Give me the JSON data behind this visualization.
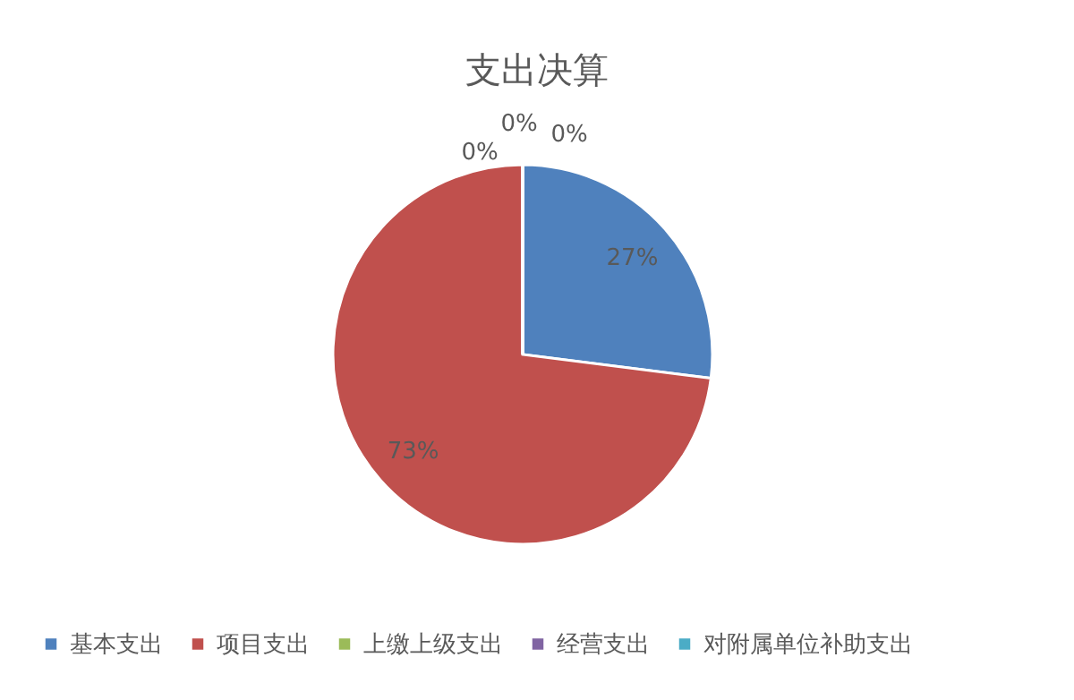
{
  "chart_data": {
    "type": "pie",
    "title": "支出决算",
    "categories": [
      "基本支出",
      "项目支出",
      "上缴上级支出",
      "经营支出",
      "对附属单位补助支出"
    ],
    "values": [
      27,
      73,
      0,
      0,
      0
    ],
    "colors": [
      "#4f81bd",
      "#c0504d",
      "#9bbb59",
      "#8064a2",
      "#4bacc6"
    ],
    "value_labels": [
      "27%",
      "73%",
      "0%",
      "0%",
      "0%"
    ],
    "legend": "bottom"
  }
}
